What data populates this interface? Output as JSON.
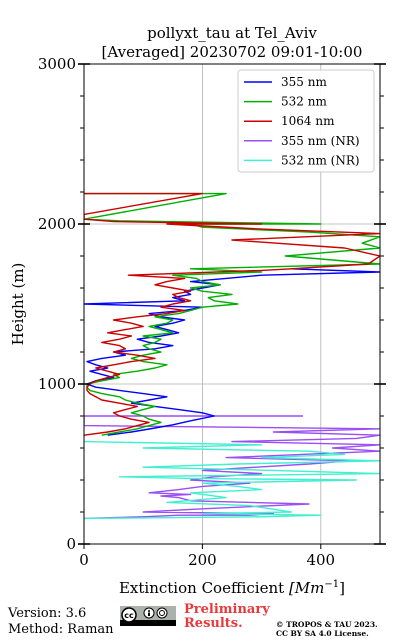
{
  "chart_data": {
    "type": "line",
    "title": [
      "pollyxt_tau at Tel_Aviv",
      "[Averaged] 20230702 09:01-10:00"
    ],
    "xlabel": "Extinction Coefficient [Mm⁻¹]",
    "xlabel_main": "Extinction Coefficient ",
    "xlabel_unit": "Mm",
    "xlabel_exp": "−1",
    "ylabel": "Height (m)",
    "xlim": [
      0,
      500
    ],
    "ylim": [
      0,
      3000
    ],
    "xticks": [
      0,
      200,
      400
    ],
    "yticks": [
      0,
      1000,
      2000,
      3000
    ],
    "grid": true,
    "legend_position": "top-right",
    "series": [
      {
        "name": "355 nm",
        "color": "#0000ff",
        "points": [
          [
            40,
            680
          ],
          [
            80,
            700
          ],
          [
            120,
            725
          ],
          [
            150,
            745
          ],
          [
            180,
            770
          ],
          [
            220,
            800
          ],
          [
            200,
            820
          ],
          [
            160,
            840
          ],
          [
            120,
            860
          ],
          [
            80,
            880
          ],
          [
            110,
            900
          ],
          [
            140,
            920
          ],
          [
            100,
            940
          ],
          [
            60,
            960
          ],
          [
            20,
            980
          ],
          [
            5,
            1000
          ],
          [
            20,
            1020
          ],
          [
            50,
            1040
          ],
          [
            30,
            1060
          ],
          [
            10,
            1080
          ],
          [
            40,
            1100
          ],
          [
            20,
            1120
          ],
          [
            5,
            1140
          ],
          [
            30,
            1160
          ],
          [
            70,
            1180
          ],
          [
            50,
            1200
          ],
          [
            120,
            1220
          ],
          [
            150,
            1240
          ],
          [
            110,
            1260
          ],
          [
            90,
            1280
          ],
          [
            130,
            1300
          ],
          [
            160,
            1320
          ],
          [
            140,
            1340
          ],
          [
            120,
            1360
          ],
          [
            150,
            1380
          ],
          [
            170,
            1400
          ],
          [
            130,
            1420
          ],
          [
            110,
            1440
          ],
          [
            170,
            1460
          ],
          [
            200,
            1480
          ],
          [
            0,
            1500
          ],
          [
            170,
            1520
          ],
          [
            150,
            1540
          ],
          [
            180,
            1560
          ],
          [
            170,
            1580
          ],
          [
            200,
            1600
          ],
          [
            230,
            1620
          ],
          [
            180,
            1640
          ],
          [
            240,
            1660
          ],
          [
            300,
            1680
          ],
          [
            500,
            1700
          ],
          [
            350,
            1720
          ]
        ]
      },
      {
        "name": "532 nm",
        "color": "#00b000",
        "points": [
          [
            30,
            680
          ],
          [
            60,
            700
          ],
          [
            90,
            720
          ],
          [
            110,
            740
          ],
          [
            130,
            760
          ],
          [
            110,
            780
          ],
          [
            100,
            800
          ],
          [
            80,
            820
          ],
          [
            100,
            840
          ],
          [
            120,
            860
          ],
          [
            90,
            880
          ],
          [
            70,
            900
          ],
          [
            60,
            920
          ],
          [
            30,
            940
          ],
          [
            10,
            960
          ],
          [
            5,
            980
          ],
          [
            5,
            1000
          ],
          [
            30,
            1020
          ],
          [
            60,
            1040
          ],
          [
            50,
            1060
          ],
          [
            90,
            1080
          ],
          [
            120,
            1100
          ],
          [
            140,
            1120
          ],
          [
            100,
            1140
          ],
          [
            80,
            1160
          ],
          [
            100,
            1180
          ],
          [
            130,
            1200
          ],
          [
            110,
            1220
          ],
          [
            100,
            1240
          ],
          [
            120,
            1260
          ],
          [
            130,
            1280
          ],
          [
            100,
            1300
          ],
          [
            150,
            1320
          ],
          [
            130,
            1340
          ],
          [
            110,
            1360
          ],
          [
            140,
            1380
          ],
          [
            150,
            1400
          ],
          [
            120,
            1420
          ],
          [
            160,
            1440
          ],
          [
            180,
            1460
          ],
          [
            200,
            1480
          ],
          [
            260,
            1500
          ],
          [
            220,
            1520
          ],
          [
            210,
            1540
          ],
          [
            250,
            1560
          ],
          [
            200,
            1580
          ],
          [
            180,
            1600
          ],
          [
            230,
            1620
          ],
          [
            200,
            1640
          ],
          [
            190,
            1660
          ],
          [
            150,
            1680
          ],
          [
            300,
            1700
          ],
          [
            180,
            1720
          ],
          [
            500,
            1750
          ],
          [
            340,
            1800
          ],
          [
            500,
            1850
          ],
          [
            470,
            1880
          ],
          [
            500,
            1920
          ],
          [
            380,
            1950
          ],
          [
            200,
            1980
          ],
          [
            180,
            2000
          ],
          [
            400,
            2000
          ],
          [
            60,
            2020
          ],
          [
            0,
            2030
          ],
          [
            240,
            2190
          ],
          [
            0,
            2190
          ]
        ]
      },
      {
        "name": "1064 nm",
        "color": "#cc0000",
        "points": [
          [
            0,
            680
          ],
          [
            40,
            700
          ],
          [
            70,
            720
          ],
          [
            90,
            740
          ],
          [
            110,
            760
          ],
          [
            80,
            780
          ],
          [
            60,
            800
          ],
          [
            50,
            820
          ],
          [
            70,
            840
          ],
          [
            90,
            860
          ],
          [
            60,
            880
          ],
          [
            30,
            900
          ],
          [
            20,
            920
          ],
          [
            10,
            940
          ],
          [
            5,
            960
          ],
          [
            5,
            980
          ],
          [
            10,
            1000
          ],
          [
            20,
            1020
          ],
          [
            40,
            1040
          ],
          [
            60,
            1060
          ],
          [
            40,
            1080
          ],
          [
            20,
            1100
          ],
          [
            50,
            1120
          ],
          [
            80,
            1140
          ],
          [
            120,
            1160
          ],
          [
            90,
            1180
          ],
          [
            50,
            1200
          ],
          [
            70,
            1220
          ],
          [
            60,
            1240
          ],
          [
            30,
            1260
          ],
          [
            60,
            1280
          ],
          [
            80,
            1300
          ],
          [
            40,
            1320
          ],
          [
            70,
            1340
          ],
          [
            100,
            1360
          ],
          [
            80,
            1380
          ],
          [
            50,
            1400
          ],
          [
            90,
            1420
          ],
          [
            140,
            1440
          ],
          [
            170,
            1460
          ],
          [
            130,
            1480
          ],
          [
            150,
            1500
          ],
          [
            180,
            1520
          ],
          [
            160,
            1540
          ],
          [
            150,
            1560
          ],
          [
            180,
            1580
          ],
          [
            150,
            1600
          ],
          [
            120,
            1620
          ],
          [
            140,
            1640
          ],
          [
            170,
            1660
          ],
          [
            75,
            1680
          ],
          [
            300,
            1710
          ],
          [
            350,
            1720
          ],
          [
            480,
            1750
          ],
          [
            500,
            1800
          ],
          [
            440,
            1850
          ],
          [
            250,
            1900
          ],
          [
            500,
            1940
          ],
          [
            290,
            1970
          ],
          [
            140,
            2000
          ],
          [
            300,
            2000
          ],
          [
            50,
            2015
          ],
          [
            0,
            2030
          ],
          [
            0,
            2060
          ],
          [
            200,
            2190
          ],
          [
            0,
            2190
          ]
        ]
      },
      {
        "name": "355 nm (NR)",
        "color": "#9a4ff5",
        "points": [
          [
            0,
            160
          ],
          [
            100,
            170
          ],
          [
            160,
            180
          ],
          [
            280,
            180
          ],
          [
            320,
            190
          ],
          [
            100,
            200
          ],
          [
            200,
            220
          ],
          [
            380,
            250
          ],
          [
            180,
            270
          ],
          [
            160,
            290
          ],
          [
            130,
            300
          ],
          [
            180,
            310
          ],
          [
            110,
            320
          ],
          [
            160,
            340
          ],
          [
            200,
            360
          ],
          [
            280,
            380
          ],
          [
            180,
            400
          ],
          [
            220,
            420
          ],
          [
            300,
            440
          ],
          [
            200,
            460
          ],
          [
            380,
            500
          ],
          [
            450,
            520
          ],
          [
            240,
            540
          ],
          [
            500,
            580
          ],
          [
            420,
            600
          ],
          [
            500,
            620
          ],
          [
            250,
            640
          ],
          [
            460,
            660
          ],
          [
            500,
            680
          ],
          [
            320,
            700
          ],
          [
            500,
            720
          ],
          [
            0,
            740
          ],
          [
            0,
            800
          ],
          [
            370,
            800
          ]
        ]
      },
      {
        "name": "532 nm (NR)",
        "color": "#40f0d0",
        "points": [
          [
            0,
            160
          ],
          [
            300,
            170
          ],
          [
            400,
            180
          ],
          [
            200,
            190
          ],
          [
            350,
            200
          ],
          [
            280,
            240
          ],
          [
            140,
            260
          ],
          [
            240,
            290
          ],
          [
            180,
            320
          ],
          [
            300,
            340
          ],
          [
            260,
            360
          ],
          [
            200,
            380
          ],
          [
            460,
            400
          ],
          [
            180,
            410
          ],
          [
            60,
            420
          ],
          [
            500,
            440
          ],
          [
            320,
            460
          ],
          [
            100,
            480
          ],
          [
            260,
            500
          ],
          [
            500,
            520
          ],
          [
            300,
            540
          ],
          [
            440,
            560
          ],
          [
            380,
            580
          ],
          [
            100,
            600
          ],
          [
            300,
            620
          ],
          [
            0,
            640
          ]
        ]
      }
    ]
  },
  "footer": {
    "version": "Version: 3.6",
    "method": "Method: Raman",
    "preliminary": "Preliminary",
    "results": "Results.",
    "copyright": "© TROPOS & TAU 2023.",
    "license": "CC BY SA 4.0 License."
  }
}
